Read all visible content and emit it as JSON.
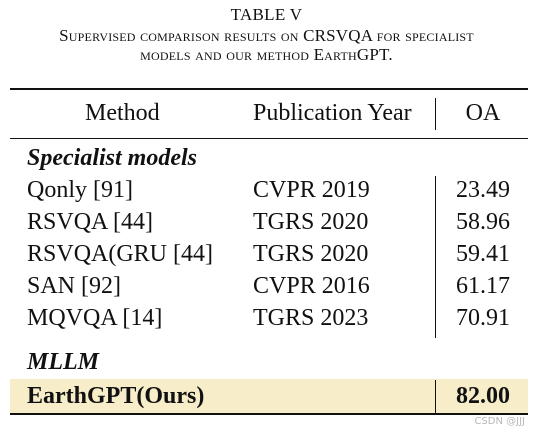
{
  "caption": {
    "table_label": "TABLE V",
    "line1": "Supervised comparison results on CRSVQA for specialist",
    "line2": "models and our method EarthGPT."
  },
  "header": {
    "method": "Method",
    "year": "Publication Year",
    "oa": "OA"
  },
  "sections": [
    {
      "title": "Specialist models",
      "rows": [
        {
          "method": "Qonly [91]",
          "year": "CVPR 2019",
          "oa": "23.49"
        },
        {
          "method": "RSVQA [44]",
          "year": "TGRS 2020",
          "oa": "58.96"
        },
        {
          "method": "RSVQA(GRU [44]",
          "year": "TGRS 2020",
          "oa": "59.41"
        },
        {
          "method": "SAN [92]",
          "year": "CVPR 2016",
          "oa": "61.17"
        },
        {
          "method": "MQVQA [14]",
          "year": "TGRS 2023",
          "oa": "70.91"
        }
      ]
    },
    {
      "title": "MLLM",
      "rows": [
        {
          "method": "EarthGPT(Ours)",
          "year": "",
          "oa": "82.00"
        }
      ]
    }
  ],
  "highlight_color": "#f7edc9",
  "watermark": "CSDN @JJJ"
}
